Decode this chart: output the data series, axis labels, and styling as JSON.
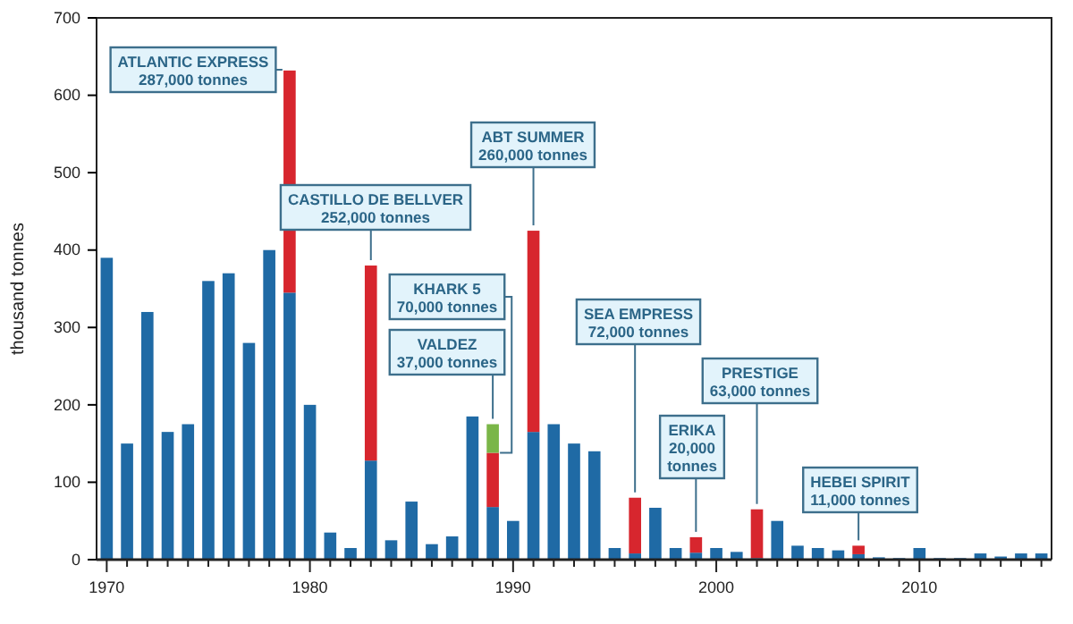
{
  "chart_data": {
    "type": "bar",
    "stacked": true,
    "ylabel": "thousand tonnes",
    "x": [
      1970,
      1971,
      1972,
      1973,
      1974,
      1975,
      1976,
      1977,
      1978,
      1979,
      1980,
      1981,
      1982,
      1983,
      1984,
      1985,
      1986,
      1987,
      1988,
      1989,
      1990,
      1991,
      1992,
      1993,
      1994,
      1995,
      1996,
      1997,
      1998,
      1999,
      2000,
      2001,
      2002,
      2003,
      2004,
      2005,
      2006,
      2007,
      2008,
      2009,
      2010,
      2011,
      2012,
      2013,
      2014,
      2015,
      2016
    ],
    "series": [
      {
        "color": "#1f6aa5",
        "values": [
          390,
          150,
          320,
          165,
          175,
          360,
          370,
          280,
          400,
          345,
          200,
          35,
          15,
          128,
          25,
          75,
          20,
          30,
          185,
          68,
          50,
          165,
          175,
          150,
          140,
          15,
          8,
          67,
          15,
          9,
          15,
          10,
          2,
          50,
          18,
          15,
          12,
          7,
          3,
          2,
          15,
          2,
          2,
          8,
          4,
          8,
          8
        ]
      },
      {
        "color": "#d7262e",
        "values": [
          null,
          null,
          null,
          null,
          null,
          null,
          null,
          null,
          null,
          287,
          null,
          null,
          null,
          252,
          null,
          null,
          null,
          null,
          null,
          70,
          null,
          260,
          null,
          null,
          null,
          null,
          72,
          null,
          null,
          20,
          null,
          null,
          63,
          null,
          null,
          null,
          null,
          11,
          null,
          null,
          null,
          null,
          null,
          null,
          null,
          null,
          null
        ]
      },
      {
        "color": "#7ab648",
        "values": [
          null,
          null,
          null,
          null,
          null,
          null,
          null,
          null,
          null,
          null,
          null,
          null,
          null,
          null,
          null,
          null,
          null,
          null,
          null,
          37,
          null,
          null,
          null,
          null,
          null,
          null,
          null,
          null,
          null,
          null,
          null,
          null,
          null,
          null,
          null,
          null,
          null,
          null,
          null,
          null,
          null,
          null,
          null,
          null,
          null,
          null,
          null
        ]
      }
    ],
    "xlim": [
      1969.5,
      2016.5
    ],
    "xticks": [
      1970,
      {
        "value": 1971,
        "label": null
      },
      {
        "value": 1972,
        "label": null
      },
      {
        "value": 1973,
        "label": null
      },
      {
        "value": 1974,
        "label": null
      },
      {
        "value": 1975,
        "label": null
      },
      {
        "value": 1976,
        "label": null
      },
      {
        "value": 1977,
        "label": null
      },
      {
        "value": 1978,
        "label": null
      },
      {
        "value": 1979,
        "label": null
      },
      1980,
      {
        "value": 1981,
        "label": null
      },
      {
        "value": 1982,
        "label": null
      },
      {
        "value": 1983,
        "label": null
      },
      {
        "value": 1984,
        "label": null
      },
      {
        "value": 1985,
        "label": null
      },
      {
        "value": 1986,
        "label": null
      },
      {
        "value": 1987,
        "label": null
      },
      {
        "value": 1988,
        "label": null
      },
      {
        "value": 1989,
        "label": null
      },
      1990,
      {
        "value": 1991,
        "label": null
      },
      {
        "value": 1992,
        "label": null
      },
      {
        "value": 1993,
        "label": null
      },
      {
        "value": 1994,
        "label": null
      },
      {
        "value": 1995,
        "label": null
      },
      {
        "value": 1996,
        "label": null
      },
      {
        "value": 1997,
        "label": null
      },
      {
        "value": 1998,
        "label": null
      },
      {
        "value": 1999,
        "label": null
      },
      2000,
      {
        "value": 2001,
        "label": null
      },
      {
        "value": 2002,
        "label": null
      },
      {
        "value": 2003,
        "label": null
      },
      {
        "value": 2004,
        "label": null
      },
      {
        "value": 2005,
        "label": null
      },
      {
        "value": 2006,
        "label": null
      },
      {
        "value": 2007,
        "label": null
      },
      {
        "value": 2008,
        "label": null
      },
      {
        "value": 2009,
        "label": null
      },
      2010,
      {
        "value": 2011,
        "label": null
      },
      {
        "value": 2012,
        "label": null
      },
      {
        "value": 2013,
        "label": null
      },
      {
        "value": 2014,
        "label": null
      },
      {
        "value": 2015,
        "label": null
      },
      {
        "value": 2016,
        "label": null
      }
    ],
    "ylim": [
      0,
      700
    ],
    "yticks": [
      0,
      100,
      200,
      300,
      400,
      500,
      600,
      700
    ],
    "grid": false,
    "annotations": [
      {
        "text": "ATLANTIC EXPRESS\n287,000 tonnes",
        "x": 1979,
        "y": 632
      },
      {
        "text": "CASTILLO DE BELLVER\n252,000 tonnes",
        "x": 1983,
        "y": 380
      },
      {
        "text": "KHARK 5\n70,000 tonnes",
        "x": 1989,
        "y": 138
      },
      {
        "text": "VALDEZ\n37,000 tonnes",
        "x": 1989,
        "y": 175
      },
      {
        "text": "ABT SUMMER\n260,000 tonnes",
        "x": 1991,
        "y": 425
      },
      {
        "text": "SEA EMPRESS\n72,000 tonnes",
        "x": 1996,
        "y": 80
      },
      {
        "text": "ERIKA\n20,000\ntonnes",
        "x": 1999,
        "y": 29
      },
      {
        "text": "PRESTIGE\n63,000 tonnes",
        "x": 2002,
        "y": 65
      },
      {
        "text": "HEBEI SPIRIT\n11,000 tonnes",
        "x": 2007,
        "y": 18
      }
    ]
  }
}
